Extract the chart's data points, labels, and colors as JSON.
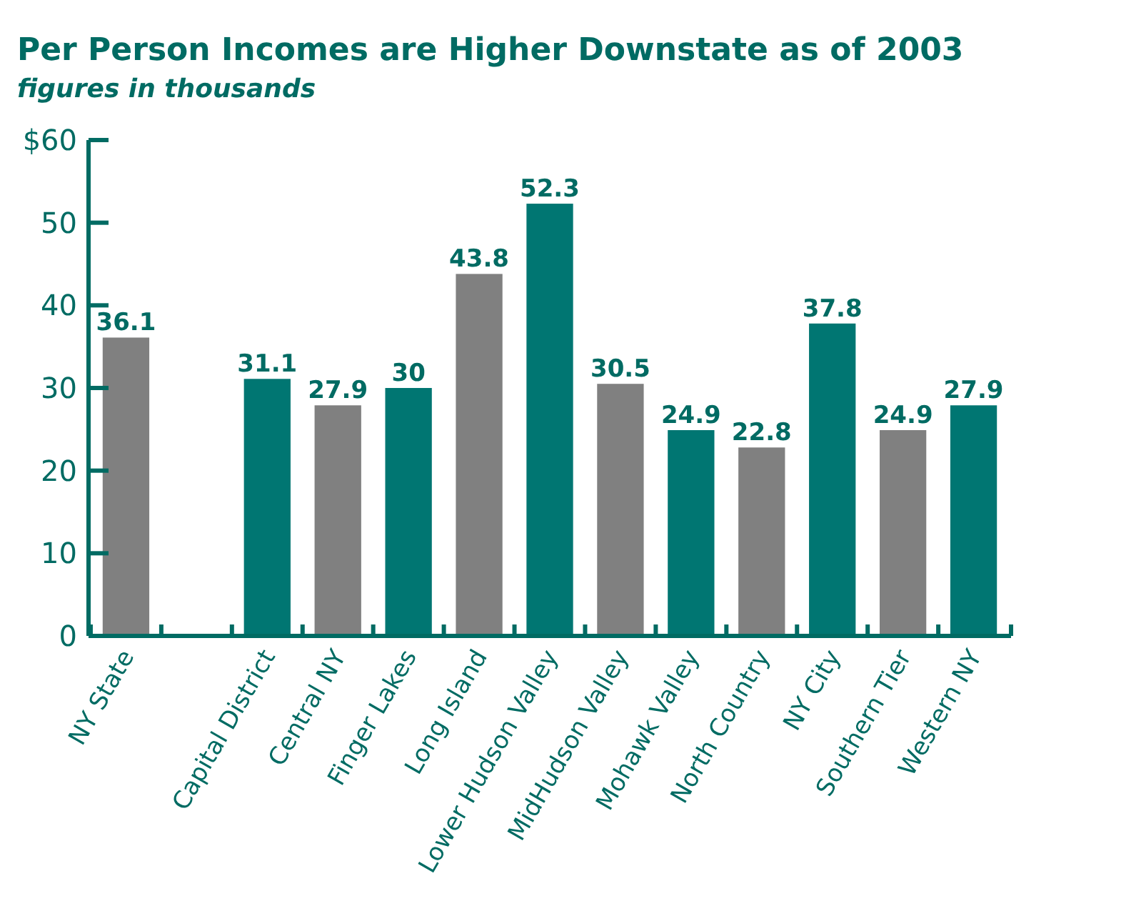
{
  "chart_data": {
    "type": "bar",
    "title": "Per Person Incomes are Higher Downstate as of 2003",
    "subtitle": "figures in thousands",
    "categories": [
      "NY State",
      null,
      "Capital District",
      "Central NY",
      "Finger Lakes",
      "Long Island",
      "Lower Hudson Valley",
      "MidHudson Valley",
      "Mohawk Valley",
      "North Country",
      "NY City",
      "Southern Tier",
      "Western NY"
    ],
    "values": [
      36.1,
      null,
      31.1,
      27.9,
      30,
      43.8,
      52.3,
      30.5,
      24.9,
      22.8,
      37.8,
      24.9,
      27.9
    ],
    "colors": [
      "#808080",
      null,
      "#007672",
      "#808080",
      "#007672",
      "#808080",
      "#007672",
      "#808080",
      "#007672",
      "#808080",
      "#007672",
      "#808080",
      "#007672"
    ],
    "ylim": [
      0,
      60
    ],
    "yticks": [
      0,
      10,
      20,
      30,
      40,
      50,
      {
        "value": 60,
        "label": "$60"
      }
    ],
    "grid": false,
    "data_labels": true
  }
}
